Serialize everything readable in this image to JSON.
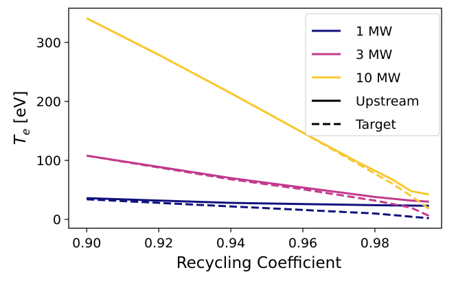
{
  "chart_data": {
    "type": "line",
    "title": "",
    "xlabel": "Recycling Coefficient",
    "ylabel_main": "T",
    "ylabel_sub": "e",
    "ylabel_unit": " [eV]",
    "xlim": [
      0.895,
      0.9985
    ],
    "ylim": [
      -15,
      358
    ],
    "xticks": [
      0.9,
      0.92,
      0.94,
      0.96,
      0.98
    ],
    "xtick_labels": [
      "0.90",
      "0.92",
      "0.94",
      "0.96",
      "0.98"
    ],
    "yticks": [
      0,
      100,
      200,
      300
    ],
    "ytick_labels": [
      "0",
      "100",
      "200",
      "300"
    ],
    "series": [
      {
        "name": "1 MW Upstream",
        "color": "#10107e",
        "style": "solid",
        "x": [
          0.9,
          0.92,
          0.94,
          0.96,
          0.98,
          0.995
        ],
        "y": [
          36,
          32,
          28,
          26,
          24,
          23
        ]
      },
      {
        "name": "1 MW Target",
        "color": "#10107e",
        "style": "dashed",
        "x": [
          0.9,
          0.92,
          0.94,
          0.96,
          0.98,
          0.995
        ],
        "y": [
          34,
          28,
          22,
          16,
          10,
          2
        ]
      },
      {
        "name": "3 MW Upstream",
        "color": "#c13a8c",
        "style": "solid",
        "x": [
          0.9,
          0.92,
          0.94,
          0.96,
          0.98,
          0.99,
          0.995
        ],
        "y": [
          108,
          89,
          70,
          54,
          38,
          32,
          30
        ]
      },
      {
        "name": "3 MW Target",
        "color": "#c13a8c",
        "style": "dashed",
        "x": [
          0.9,
          0.92,
          0.94,
          0.96,
          0.98,
          0.99,
          0.995
        ],
        "y": [
          108,
          88,
          68,
          51,
          32,
          20,
          6
        ]
      },
      {
        "name": "10 MW Upstream",
        "color": "#f8c830",
        "style": "solid",
        "x": [
          0.9,
          0.92,
          0.94,
          0.96,
          0.975,
          0.985,
          0.99,
          0.995
        ],
        "y": [
          341,
          279,
          214,
          147,
          98,
          67,
          48,
          42
        ]
      },
      {
        "name": "10 MW Target",
        "color": "#f8c830",
        "style": "dashed",
        "x": [
          0.9,
          0.92,
          0.94,
          0.96,
          0.975,
          0.985,
          0.99,
          0.995
        ],
        "y": [
          341,
          279,
          214,
          147,
          95,
          60,
          40,
          18
        ]
      }
    ],
    "legend": {
      "placement": "top-right",
      "entries": [
        {
          "label": "1 MW",
          "color": "#10107e",
          "style": "solid"
        },
        {
          "label": "3 MW",
          "color": "#c13a8c",
          "style": "solid"
        },
        {
          "label": "10 MW",
          "color": "#f8c830",
          "style": "solid"
        },
        {
          "label": "Upstream",
          "color": "#000000",
          "style": "solid"
        },
        {
          "label": "Target",
          "color": "#000000",
          "style": "dashed"
        }
      ]
    }
  }
}
